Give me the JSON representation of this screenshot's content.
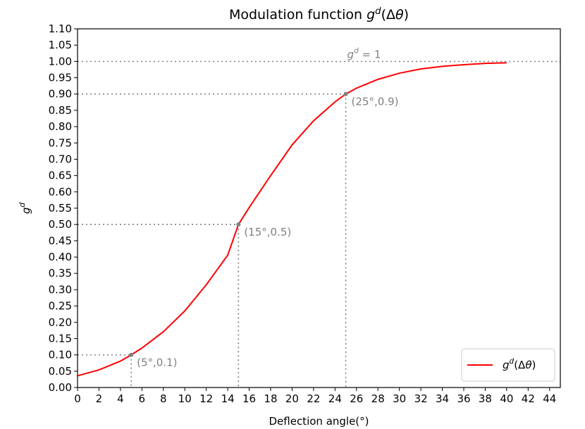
{
  "chart_data": {
    "type": "line",
    "title": "Modulation function",
    "title_math": "g^d(Δθ)",
    "xlabel": "Deflection angle(°)",
    "ylabel": "g^d",
    "xlim": [
      0,
      45
    ],
    "ylim": [
      0,
      1.1
    ],
    "x_ticks": [
      0,
      2,
      4,
      6,
      8,
      10,
      12,
      14,
      16,
      18,
      20,
      22,
      24,
      26,
      28,
      30,
      32,
      34,
      36,
      38,
      40,
      42,
      44
    ],
    "y_ticks": [
      0.0,
      0.05,
      0.1,
      0.15,
      0.2,
      0.25,
      0.3,
      0.35,
      0.4,
      0.45,
      0.5,
      0.55,
      0.6,
      0.65,
      0.7,
      0.75,
      0.8,
      0.85,
      0.9,
      0.95,
      1.0,
      1.05,
      1.1
    ],
    "grid": false,
    "legend": "lower-right",
    "series": [
      {
        "name": "g^d(Δθ)",
        "color": "#ff0000",
        "x": [
          0,
          2,
          4,
          5,
          6,
          8,
          10,
          12,
          14,
          15,
          16,
          18,
          20,
          22,
          24,
          25,
          26,
          28,
          30,
          32,
          34,
          36,
          38,
          40
        ],
        "y": [
          0.036,
          0.054,
          0.081,
          0.1,
          0.121,
          0.171,
          0.235,
          0.315,
          0.406,
          0.5,
          0.552,
          0.65,
          0.744,
          0.818,
          0.876,
          0.9,
          0.918,
          0.945,
          0.964,
          0.977,
          0.985,
          0.99,
          0.994,
          0.996
        ]
      }
    ],
    "reference_lines": [
      {
        "type": "horizontal",
        "y": 1.0,
        "label": "g^d = 1"
      }
    ],
    "annotations": [
      {
        "x": 5,
        "y": 0.1,
        "label": "(5°,0.1)"
      },
      {
        "x": 15,
        "y": 0.5,
        "label": "(15°,0.5)"
      },
      {
        "x": 25,
        "y": 0.9,
        "label": "(25°,0.9)"
      }
    ],
    "colors": {
      "curve": "#ff0000",
      "guide": "#808080",
      "point": "#808080"
    }
  }
}
